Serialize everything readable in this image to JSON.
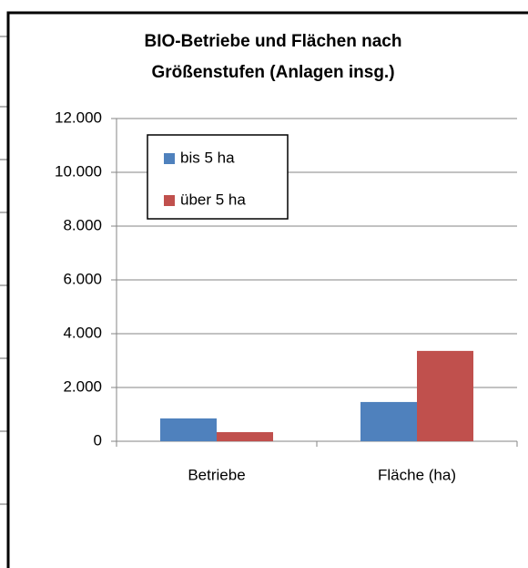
{
  "chart_data": {
    "type": "bar",
    "title": [
      "BIO-Betriebe und Flächen nach",
      "Größenstufen (Anlagen insg.)"
    ],
    "categories": [
      "Betriebe",
      "Fläche (ha)"
    ],
    "series": [
      {
        "name": "bis 5 ha",
        "color": "#4f81bd",
        "values": [
          850,
          1460
        ]
      },
      {
        "name": "über 5 ha",
        "color": "#c0504d",
        "values": [
          340,
          3360
        ]
      }
    ],
    "ylim": [
      0,
      12000
    ],
    "yticks": [
      0,
      {
        "value": 2000,
        "label": "2.000"
      },
      {
        "value": 4000,
        "label": "4.000"
      },
      {
        "value": 6000,
        "label": "6.000"
      },
      {
        "value": 8000,
        "label": "8.000"
      },
      {
        "value": 10000,
        "label": "10.000"
      },
      {
        "value": 12000,
        "label": "12.000"
      }
    ],
    "grid": true,
    "legend": "upper left"
  }
}
